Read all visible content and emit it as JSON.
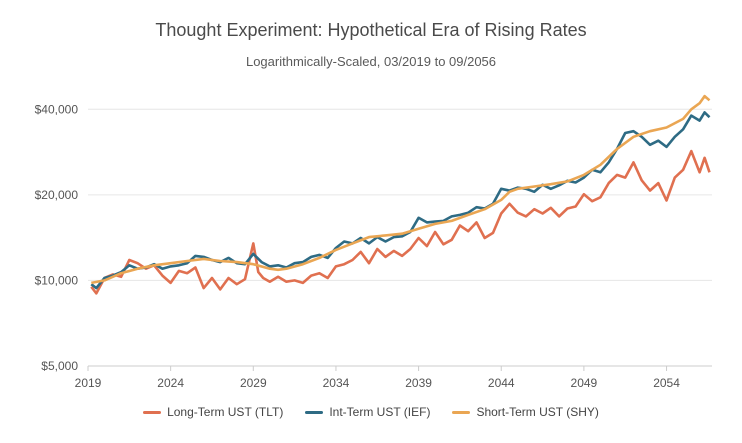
{
  "chart_data": {
    "type": "line",
    "title": "Thought Experiment: Hypothetical Era of Rising Rates",
    "subtitle": "Logarithmically-Scaled, 03/2019 to 09/2056",
    "y_scale": "log",
    "ylim": [
      5000,
      46000
    ],
    "xlim": [
      2019,
      2056.75
    ],
    "y_ticks": [
      {
        "value": 5000,
        "label": "$5,000"
      },
      {
        "value": 10000,
        "label": "$10,000"
      },
      {
        "value": 20000,
        "label": "$20,000"
      },
      {
        "value": 40000,
        "label": "$40,000"
      }
    ],
    "x_ticks": [
      {
        "value": 2019,
        "label": "2019"
      },
      {
        "value": 2024,
        "label": "2024"
      },
      {
        "value": 2029,
        "label": "2029"
      },
      {
        "value": 2034,
        "label": "2034"
      },
      {
        "value": 2039,
        "label": "2039"
      },
      {
        "value": 2044,
        "label": "2044"
      },
      {
        "value": 2049,
        "label": "2049"
      },
      {
        "value": 2054,
        "label": "2054"
      }
    ],
    "gridlines": "horizontal",
    "legend_position": "bottom",
    "series": [
      {
        "name": "Long-Term UST (TLT)",
        "color": "#e07050",
        "x": [
          2019.2,
          2019.5,
          2020.0,
          2020.5,
          2021.0,
          2021.5,
          2022.0,
          2022.5,
          2023.0,
          2023.5,
          2024.0,
          2024.5,
          2025.0,
          2025.5,
          2026.0,
          2026.5,
          2027.0,
          2027.5,
          2028.0,
          2028.5,
          2029.0,
          2029.3,
          2029.6,
          2030.0,
          2030.5,
          2031.0,
          2031.5,
          2032.0,
          2032.5,
          2033.0,
          2033.5,
          2034.0,
          2034.5,
          2035.0,
          2035.5,
          2036.0,
          2036.5,
          2037.0,
          2037.5,
          2038.0,
          2038.5,
          2039.0,
          2039.5,
          2040.0,
          2040.5,
          2041.0,
          2041.5,
          2042.0,
          2042.5,
          2043.0,
          2043.5,
          2044.0,
          2044.5,
          2045.0,
          2045.5,
          2046.0,
          2046.5,
          2047.0,
          2047.5,
          2048.0,
          2048.5,
          2049.0,
          2049.5,
          2050.0,
          2050.5,
          2051.0,
          2051.5,
          2052.0,
          2052.5,
          2053.0,
          2053.5,
          2054.0,
          2054.5,
          2055.0,
          2055.5,
          2056.0,
          2056.3,
          2056.6
        ],
        "values": [
          9500,
          9000,
          10200,
          10500,
          10300,
          11800,
          11500,
          11000,
          11300,
          10400,
          9800,
          10800,
          10600,
          11100,
          9400,
          10200,
          9300,
          10200,
          9700,
          10100,
          13500,
          10700,
          10200,
          9900,
          10300,
          9900,
          10000,
          9800,
          10400,
          10600,
          10200,
          11200,
          11400,
          11800,
          12600,
          11500,
          12900,
          12100,
          12700,
          12200,
          12900,
          14100,
          13200,
          14800,
          13400,
          13900,
          15600,
          14900,
          16000,
          14100,
          14700,
          17200,
          18600,
          17300,
          16800,
          17800,
          17200,
          18000,
          16800,
          17900,
          18200,
          20100,
          19000,
          19600,
          22000,
          23500,
          23000,
          26000,
          22500,
          20700,
          22000,
          19100,
          23000,
          24500,
          28500,
          24000,
          27000,
          24000
        ]
      },
      {
        "name": "Int-Term UST (IEF)",
        "color": "#2e6b84",
        "x": [
          2019.2,
          2019.5,
          2020.0,
          2020.5,
          2021.0,
          2021.5,
          2022.0,
          2022.5,
          2023.0,
          2023.5,
          2024.0,
          2024.5,
          2025.0,
          2025.5,
          2026.0,
          2026.5,
          2027.0,
          2027.5,
          2028.0,
          2028.5,
          2029.0,
          2029.5,
          2030.0,
          2030.5,
          2031.0,
          2031.5,
          2032.0,
          2032.5,
          2033.0,
          2033.5,
          2034.0,
          2034.5,
          2035.0,
          2035.5,
          2036.0,
          2036.5,
          2037.0,
          2037.5,
          2038.0,
          2038.5,
          2039.0,
          2039.5,
          2040.0,
          2040.5,
          2041.0,
          2041.5,
          2042.0,
          2042.5,
          2043.0,
          2043.5,
          2044.0,
          2044.5,
          2045.0,
          2045.5,
          2046.0,
          2046.5,
          2047.0,
          2047.5,
          2048.0,
          2048.5,
          2049.0,
          2049.5,
          2050.0,
          2050.5,
          2051.0,
          2051.5,
          2052.0,
          2052.5,
          2053.0,
          2053.5,
          2054.0,
          2054.5,
          2055.0,
          2055.5,
          2056.0,
          2056.3,
          2056.6
        ],
        "values": [
          9700,
          9400,
          10200,
          10400,
          10700,
          11300,
          11000,
          11100,
          11400,
          11000,
          11200,
          11300,
          11500,
          12200,
          12100,
          11800,
          11600,
          12000,
          11500,
          11400,
          12400,
          11600,
          11200,
          11300,
          11100,
          11500,
          11600,
          12100,
          12300,
          12000,
          13000,
          13700,
          13500,
          14100,
          13500,
          14200,
          13700,
          14200,
          14300,
          14800,
          16600,
          16000,
          16100,
          16200,
          16800,
          17000,
          17300,
          18100,
          17900,
          18600,
          21000,
          20700,
          21200,
          21000,
          20500,
          21700,
          21000,
          21600,
          22400,
          22100,
          23000,
          24500,
          24000,
          26000,
          29000,
          33000,
          33500,
          32000,
          30000,
          31000,
          29500,
          32000,
          34000,
          38000,
          36500,
          39000,
          37500
        ]
      },
      {
        "name": "Short-Term UST (SHY)",
        "color": "#eaa653",
        "x": [
          2019.2,
          2020.0,
          2021.0,
          2022.0,
          2023.0,
          2024.0,
          2025.0,
          2026.0,
          2027.0,
          2028.0,
          2029.0,
          2030.0,
          2030.5,
          2031.0,
          2032.0,
          2033.0,
          2034.0,
          2035.0,
          2036.0,
          2037.0,
          2038.0,
          2039.0,
          2040.0,
          2041.0,
          2042.0,
          2043.0,
          2044.0,
          2044.5,
          2045.0,
          2046.0,
          2047.0,
          2048.0,
          2049.0,
          2050.0,
          2051.0,
          2052.0,
          2053.0,
          2054.0,
          2055.0,
          2055.5,
          2056.0,
          2056.3,
          2056.6
        ],
        "values": [
          9800,
          10000,
          10600,
          11000,
          11300,
          11500,
          11700,
          11900,
          11700,
          11600,
          11400,
          11000,
          10900,
          11000,
          11400,
          12000,
          12800,
          13500,
          14200,
          14400,
          14600,
          15200,
          15800,
          16200,
          17000,
          17800,
          19200,
          20500,
          21000,
          21400,
          21800,
          22300,
          23500,
          25500,
          29000,
          32000,
          33500,
          34500,
          37000,
          40000,
          42000,
          44500,
          43000
        ]
      }
    ]
  }
}
